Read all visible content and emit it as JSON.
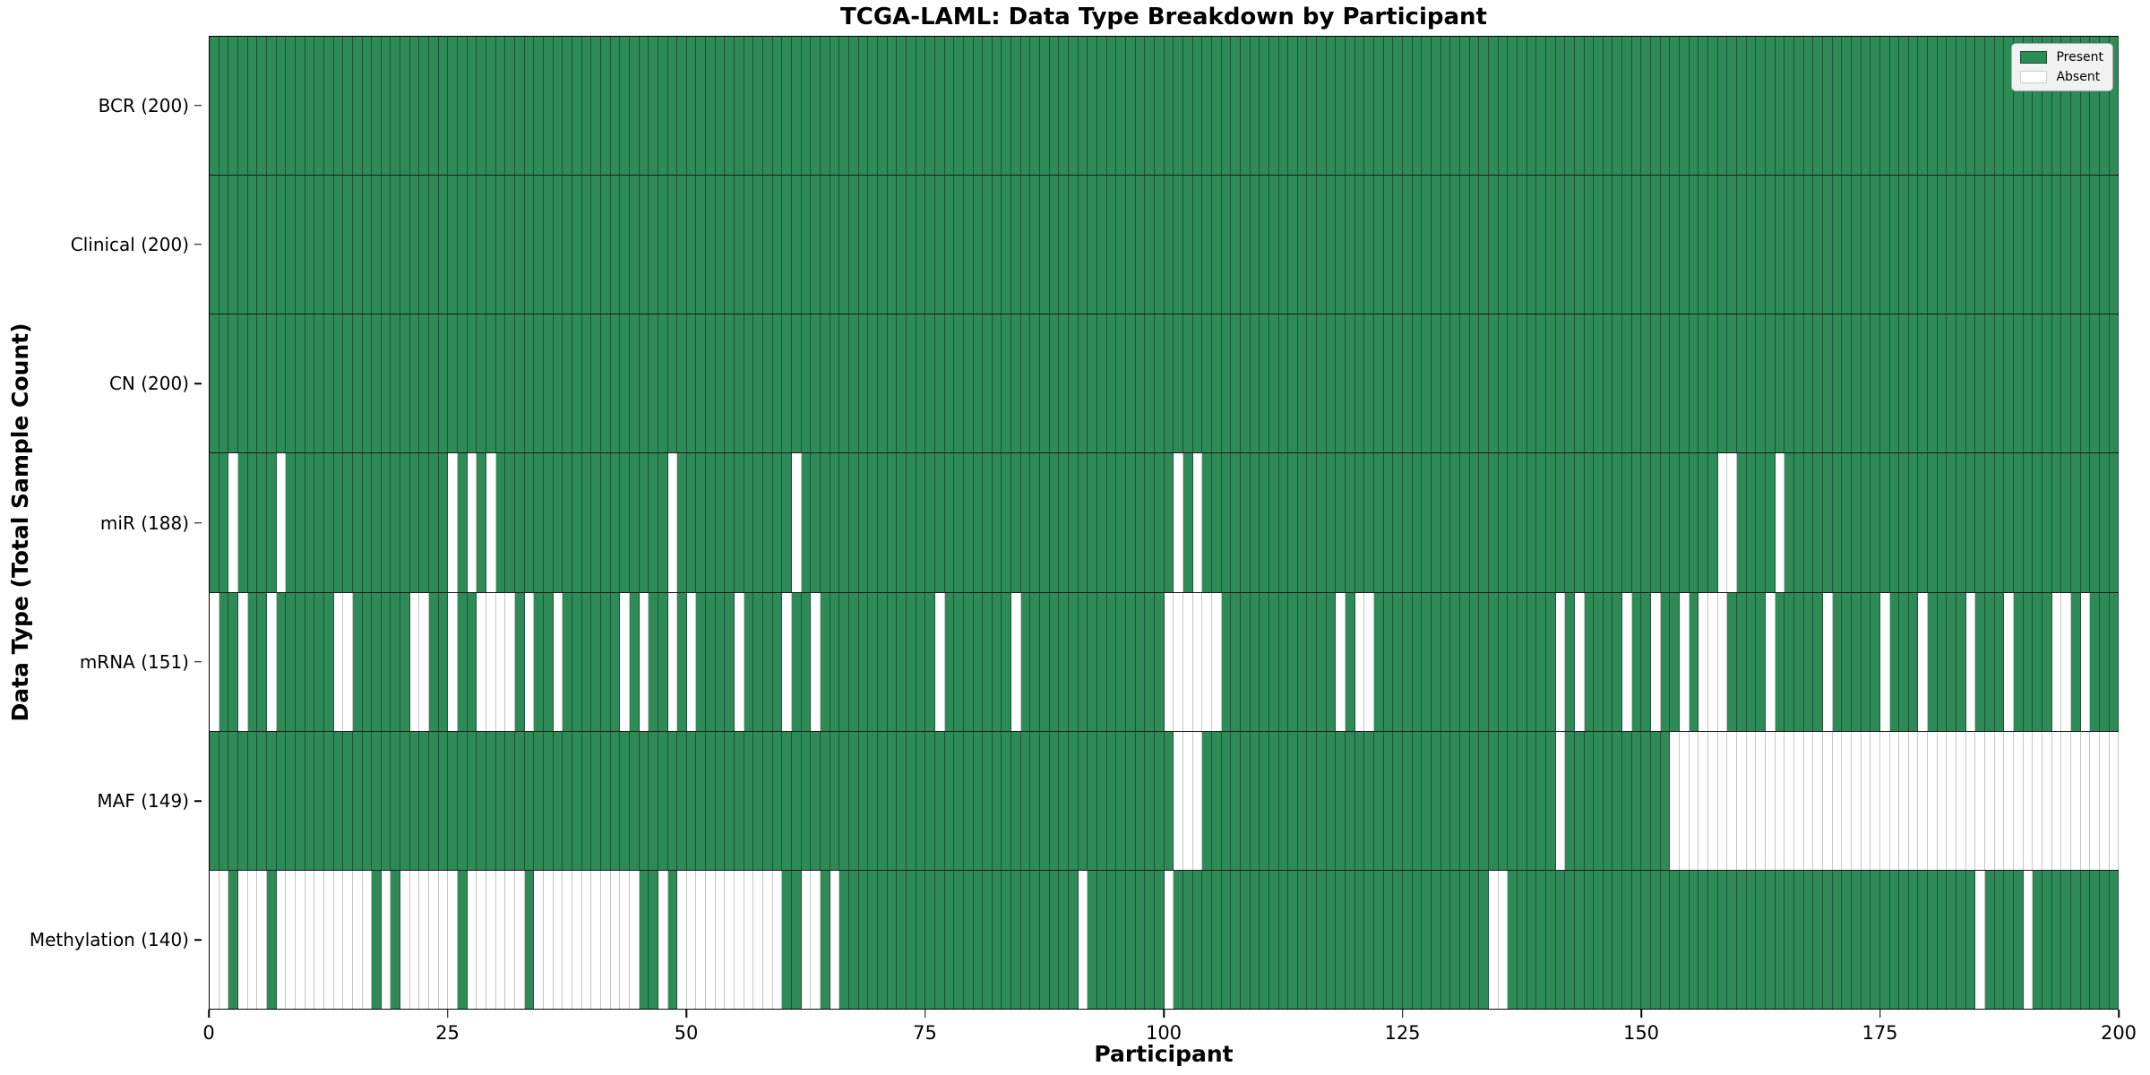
{
  "chart_data": {
    "type": "heatmap",
    "title": "TCGA-LAML: Data Type Breakdown by Participant",
    "xlabel": "Participant",
    "ylabel": "Data Type (Total Sample Count)",
    "x_ticks": [
      0,
      25,
      50,
      75,
      100,
      125,
      150,
      175,
      200
    ],
    "x_range": [
      0,
      200
    ],
    "n_participants": 200,
    "grid": "off",
    "legend_position": "upper right",
    "colors": {
      "present": "#2e8b57",
      "absent": "#ffffff"
    },
    "legend": [
      {
        "label": "Present",
        "color": "#2e8b57"
      },
      {
        "label": "Absent",
        "color": "#ffffff"
      }
    ],
    "rows": [
      {
        "label": "BCR (200)",
        "data_type": "BCR",
        "total_samples": 200,
        "absent_participants": []
      },
      {
        "label": "Clinical (200)",
        "data_type": "Clinical",
        "total_samples": 200,
        "absent_participants": []
      },
      {
        "label": "CN (200)",
        "data_type": "CN",
        "total_samples": 200,
        "absent_participants": []
      },
      {
        "label": "miR (188)",
        "data_type": "miR",
        "total_samples": 188,
        "absent_participants": [
          2,
          7,
          25,
          27,
          29,
          48,
          61,
          101,
          103,
          158,
          159,
          164
        ]
      },
      {
        "label": "mRNA (151)",
        "data_type": "mRNA",
        "total_samples": 151,
        "absent_participants": [
          0,
          3,
          6,
          13,
          14,
          21,
          22,
          25,
          28,
          29,
          30,
          31,
          33,
          36,
          43,
          45,
          48,
          50,
          55,
          60,
          63,
          76,
          84,
          100,
          101,
          102,
          103,
          104,
          105,
          118,
          120,
          121,
          141,
          143,
          148,
          151,
          154,
          156,
          157,
          158,
          163,
          169,
          175,
          179,
          184,
          188,
          193,
          194,
          196
        ]
      },
      {
        "label": "MAF (149)",
        "data_type": "MAF",
        "total_samples": 149,
        "absent_participants": [
          101,
          102,
          103,
          141,
          153,
          154,
          155,
          156,
          157,
          158,
          159,
          160,
          161,
          162,
          163,
          164,
          165,
          166,
          167,
          168,
          169,
          170,
          171,
          172,
          173,
          174,
          175,
          176,
          177,
          178,
          179,
          180,
          181,
          182,
          183,
          184,
          185,
          186,
          187,
          188,
          189,
          190,
          191,
          192,
          193,
          194,
          195,
          196,
          197,
          198,
          199
        ]
      },
      {
        "label": "Methylation (140)",
        "data_type": "Methylation",
        "total_samples": 140,
        "absent_participants": [
          0,
          1,
          3,
          4,
          5,
          7,
          8,
          9,
          10,
          11,
          12,
          13,
          14,
          15,
          16,
          18,
          20,
          21,
          22,
          23,
          24,
          25,
          27,
          28,
          29,
          30,
          31,
          32,
          34,
          35,
          36,
          37,
          38,
          39,
          40,
          41,
          42,
          43,
          44,
          47,
          49,
          50,
          51,
          52,
          53,
          54,
          55,
          56,
          57,
          58,
          59,
          62,
          63,
          65,
          91,
          100,
          134,
          135,
          185,
          190
        ]
      }
    ]
  }
}
